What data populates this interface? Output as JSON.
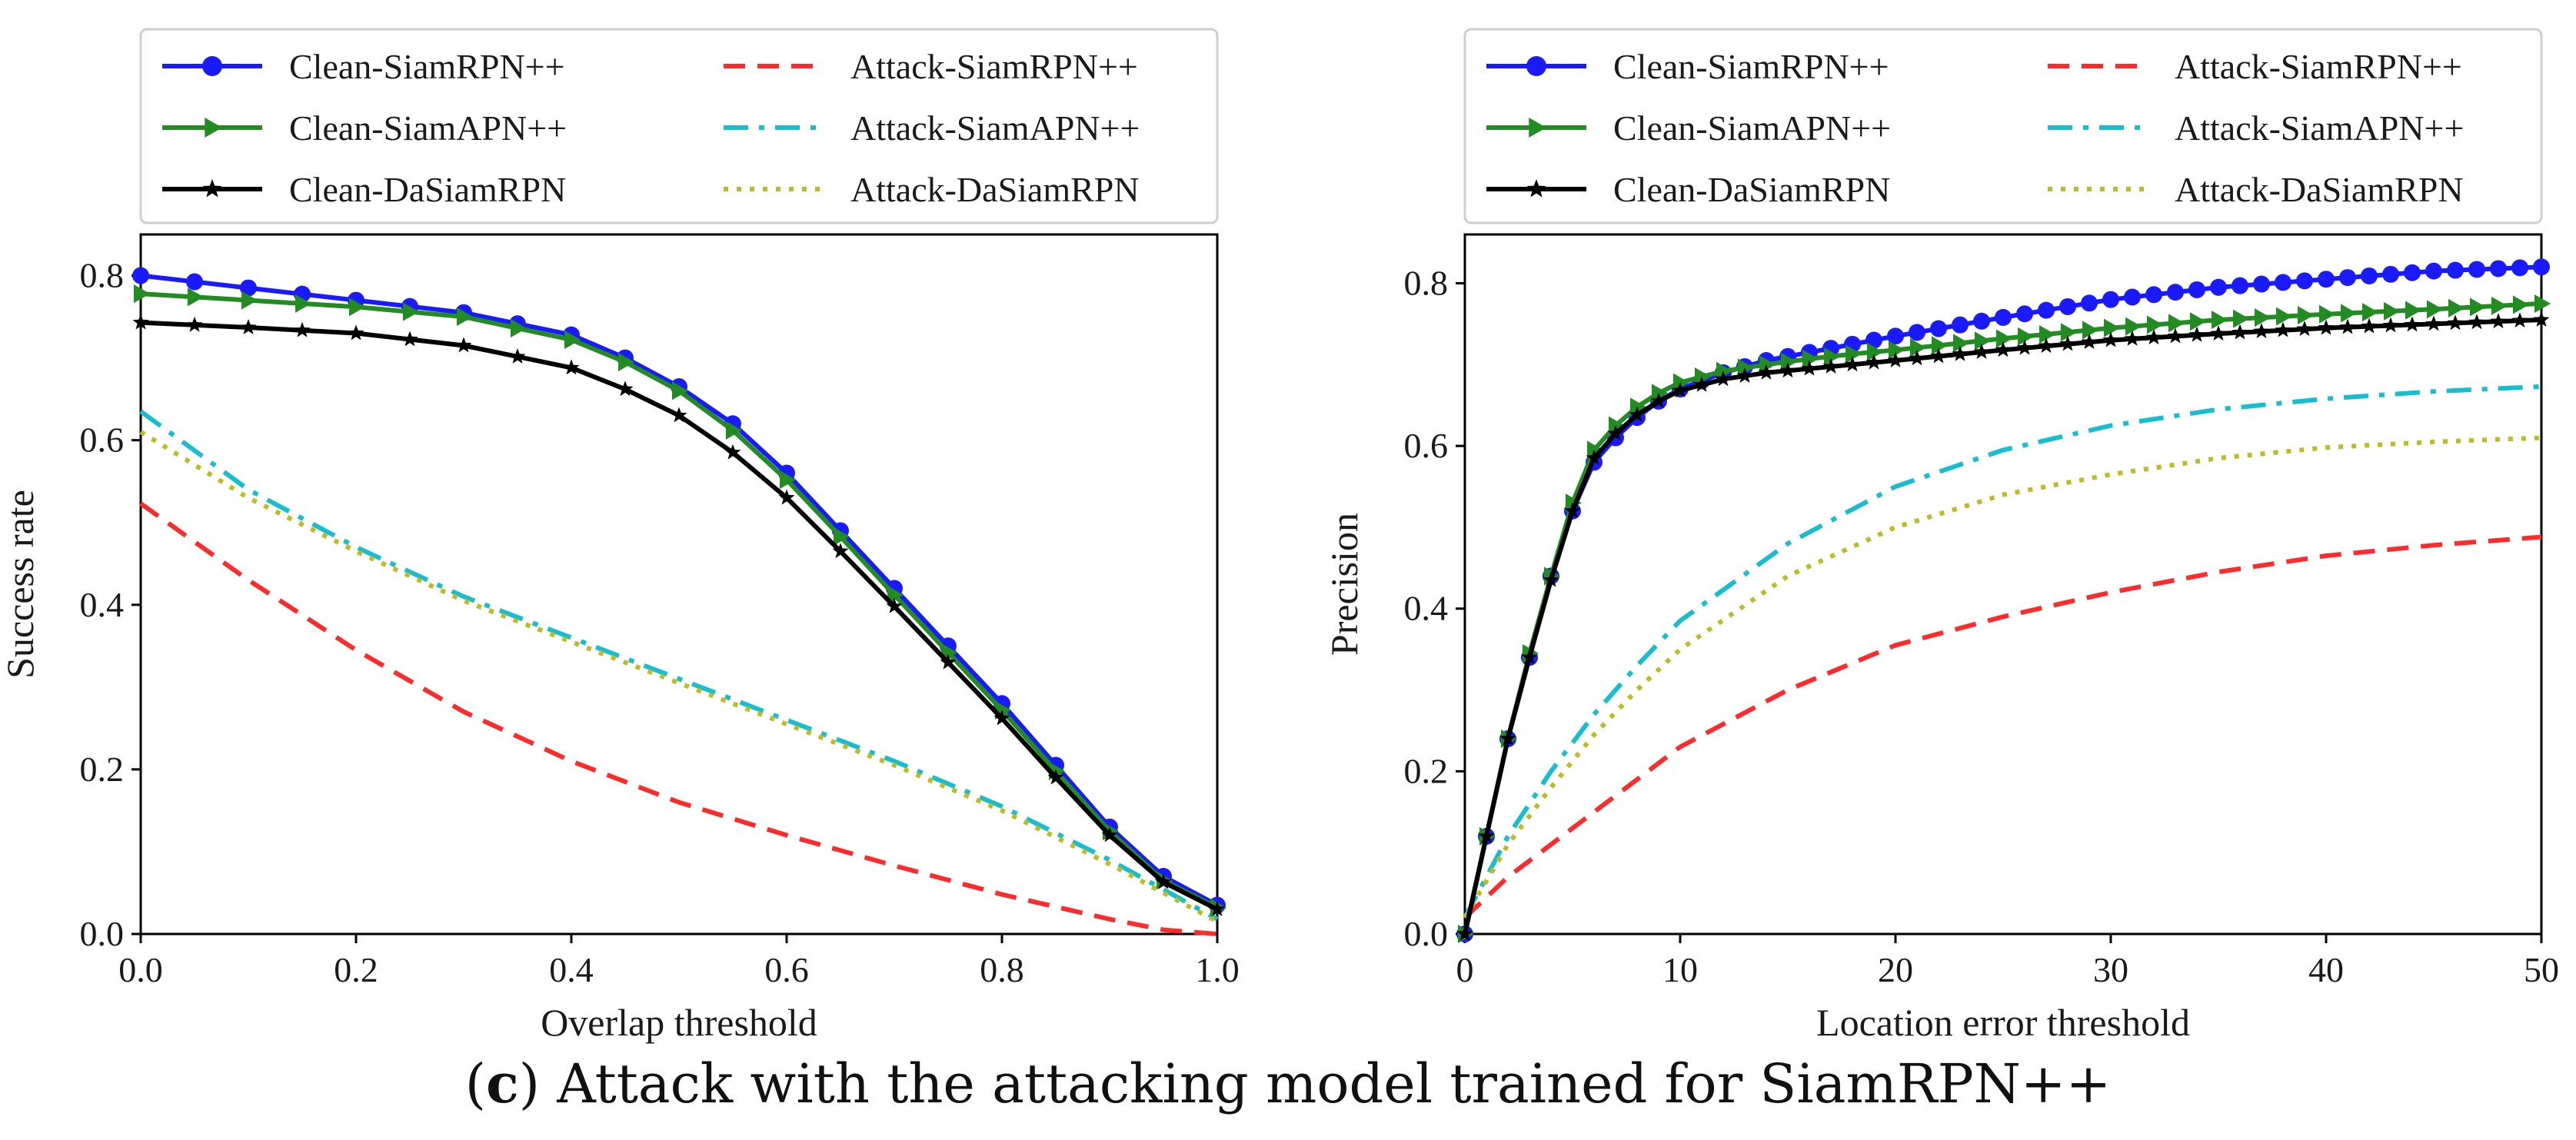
{
  "caption": {
    "letter": "c",
    "text": "Attack with the attacking model trained for SiamRPN++"
  },
  "chart_data": [
    {
      "type": "line",
      "title": "",
      "xlabel": "Overlap threshold",
      "ylabel": "Success rate",
      "xlim": [
        0,
        1
      ],
      "ylim": [
        0,
        0.85
      ],
      "xticks": [
        "0.0",
        "0.2",
        "0.4",
        "0.6",
        "0.8",
        "1.0"
      ],
      "yticks": [
        "0.0",
        "0.2",
        "0.4",
        "0.6",
        "0.8"
      ],
      "legend_position": "top",
      "series": [
        {
          "name": "Clean-SiamRPN++",
          "color": "#1a1aff",
          "style": "solid",
          "marker": "circle",
          "x": [
            0,
            0.1,
            0.2,
            0.3,
            0.4,
            0.45,
            0.5,
            0.55,
            0.6,
            0.65,
            0.7,
            0.75,
            0.8,
            0.85,
            0.9,
            0.95,
            1.0
          ],
          "y": [
            0.8,
            0.785,
            0.77,
            0.755,
            0.728,
            0.7,
            0.665,
            0.62,
            0.56,
            0.49,
            0.42,
            0.35,
            0.28,
            0.205,
            0.13,
            0.07,
            0.035
          ]
        },
        {
          "name": "Clean-SiamAPN++",
          "color": "#228b22",
          "style": "solid",
          "marker": "triangle-right",
          "x": [
            0,
            0.1,
            0.2,
            0.3,
            0.4,
            0.45,
            0.5,
            0.55,
            0.6,
            0.65,
            0.7,
            0.75,
            0.8,
            0.85,
            0.9,
            0.95,
            1.0
          ],
          "y": [
            0.778,
            0.77,
            0.762,
            0.75,
            0.722,
            0.695,
            0.66,
            0.612,
            0.552,
            0.483,
            0.412,
            0.342,
            0.272,
            0.198,
            0.125,
            0.065,
            0.032
          ]
        },
        {
          "name": "Clean-DaSiamRPN",
          "color": "#000000",
          "style": "solid",
          "marker": "star",
          "x": [
            0,
            0.1,
            0.2,
            0.3,
            0.4,
            0.45,
            0.5,
            0.55,
            0.6,
            0.65,
            0.7,
            0.75,
            0.8,
            0.85,
            0.9,
            0.95,
            1.0
          ],
          "y": [
            0.743,
            0.737,
            0.73,
            0.715,
            0.688,
            0.662,
            0.63,
            0.585,
            0.53,
            0.465,
            0.398,
            0.33,
            0.262,
            0.19,
            0.12,
            0.063,
            0.03
          ]
        },
        {
          "name": "Attack-SiamRPN++",
          "color": "#ff2a2a",
          "style": "dashed",
          "marker": "none",
          "x": [
            0,
            0.1,
            0.2,
            0.3,
            0.4,
            0.5,
            0.6,
            0.7,
            0.8,
            0.9,
            0.95,
            1.0
          ],
          "y": [
            0.523,
            0.43,
            0.345,
            0.27,
            0.21,
            0.16,
            0.12,
            0.083,
            0.048,
            0.018,
            0.005,
            0.0
          ]
        },
        {
          "name": "Attack-SiamAPN++",
          "color": "#17becf",
          "style": "dashdot",
          "marker": "none",
          "x": [
            0,
            0.1,
            0.2,
            0.3,
            0.4,
            0.5,
            0.6,
            0.7,
            0.8,
            0.9,
            1.0
          ],
          "y": [
            0.635,
            0.54,
            0.47,
            0.41,
            0.36,
            0.31,
            0.26,
            0.21,
            0.155,
            0.09,
            0.018
          ]
        },
        {
          "name": "Attack-DaSiamRPN",
          "color": "#bcbd22",
          "style": "dotted",
          "marker": "none",
          "x": [
            0,
            0.1,
            0.2,
            0.3,
            0.4,
            0.5,
            0.6,
            0.7,
            0.8,
            0.9,
            1.0
          ],
          "y": [
            0.61,
            0.53,
            0.465,
            0.405,
            0.355,
            0.305,
            0.255,
            0.205,
            0.15,
            0.085,
            0.015
          ]
        }
      ]
    },
    {
      "type": "line",
      "title": "",
      "xlabel": "Location error threshold",
      "ylabel": "Precision",
      "xlim": [
        0,
        50
      ],
      "ylim": [
        0,
        0.86
      ],
      "xticks": [
        "0",
        "10",
        "20",
        "30",
        "40",
        "50"
      ],
      "yticks": [
        "0.0",
        "0.2",
        "0.4",
        "0.6",
        "0.8"
      ],
      "legend_position": "top",
      "series": [
        {
          "name": "Clean-SiamRPN++",
          "color": "#1a1aff",
          "style": "solid",
          "marker": "circle",
          "x": [
            0,
            1,
            2,
            3,
            4,
            5,
            6,
            7,
            8,
            9,
            10,
            12,
            14,
            16,
            18,
            20,
            25,
            30,
            35,
            40,
            45,
            50
          ],
          "y": [
            0.0,
            0.12,
            0.24,
            0.34,
            0.44,
            0.52,
            0.58,
            0.61,
            0.635,
            0.655,
            0.67,
            0.69,
            0.705,
            0.715,
            0.725,
            0.735,
            0.758,
            0.78,
            0.795,
            0.805,
            0.815,
            0.82
          ]
        },
        {
          "name": "Clean-SiamAPN++",
          "color": "#228b22",
          "style": "solid",
          "marker": "triangle-right",
          "x": [
            0,
            1,
            2,
            3,
            4,
            5,
            6,
            7,
            8,
            9,
            10,
            12,
            14,
            16,
            18,
            20,
            25,
            30,
            35,
            40,
            45,
            50
          ],
          "y": [
            0.0,
            0.12,
            0.24,
            0.345,
            0.44,
            0.53,
            0.595,
            0.625,
            0.648,
            0.665,
            0.678,
            0.692,
            0.7,
            0.707,
            0.713,
            0.718,
            0.732,
            0.745,
            0.755,
            0.762,
            0.768,
            0.775
          ]
        },
        {
          "name": "Clean-DaSiamRPN",
          "color": "#000000",
          "style": "solid",
          "marker": "star",
          "x": [
            0,
            1,
            2,
            3,
            4,
            5,
            6,
            7,
            8,
            9,
            10,
            12,
            14,
            16,
            18,
            20,
            25,
            30,
            35,
            40,
            45,
            50
          ],
          "y": [
            0.0,
            0.12,
            0.24,
            0.34,
            0.435,
            0.52,
            0.585,
            0.615,
            0.638,
            0.655,
            0.668,
            0.682,
            0.69,
            0.695,
            0.7,
            0.705,
            0.718,
            0.73,
            0.738,
            0.745,
            0.75,
            0.755
          ]
        },
        {
          "name": "Attack-SiamRPN++",
          "color": "#ff2a2a",
          "style": "dashed",
          "marker": "none",
          "x": [
            0,
            2,
            4,
            6,
            8,
            10,
            15,
            20,
            25,
            30,
            35,
            40,
            45,
            50
          ],
          "y": [
            0.02,
            0.07,
            0.11,
            0.15,
            0.19,
            0.23,
            0.3,
            0.355,
            0.39,
            0.42,
            0.445,
            0.465,
            0.478,
            0.488
          ]
        },
        {
          "name": "Attack-SiamAPN++",
          "color": "#17becf",
          "style": "dashdot",
          "marker": "none",
          "x": [
            0,
            2,
            4,
            6,
            8,
            10,
            15,
            20,
            25,
            30,
            35,
            40,
            45,
            50
          ],
          "y": [
            0.02,
            0.12,
            0.2,
            0.27,
            0.33,
            0.385,
            0.48,
            0.55,
            0.595,
            0.625,
            0.645,
            0.658,
            0.667,
            0.673
          ]
        },
        {
          "name": "Attack-DaSiamRPN",
          "color": "#bcbd22",
          "style": "dotted",
          "marker": "none",
          "x": [
            0,
            2,
            4,
            6,
            8,
            10,
            15,
            20,
            25,
            30,
            35,
            40,
            45,
            50
          ],
          "y": [
            0.02,
            0.11,
            0.18,
            0.245,
            0.3,
            0.35,
            0.44,
            0.5,
            0.54,
            0.565,
            0.585,
            0.598,
            0.605,
            0.61
          ]
        }
      ]
    }
  ]
}
